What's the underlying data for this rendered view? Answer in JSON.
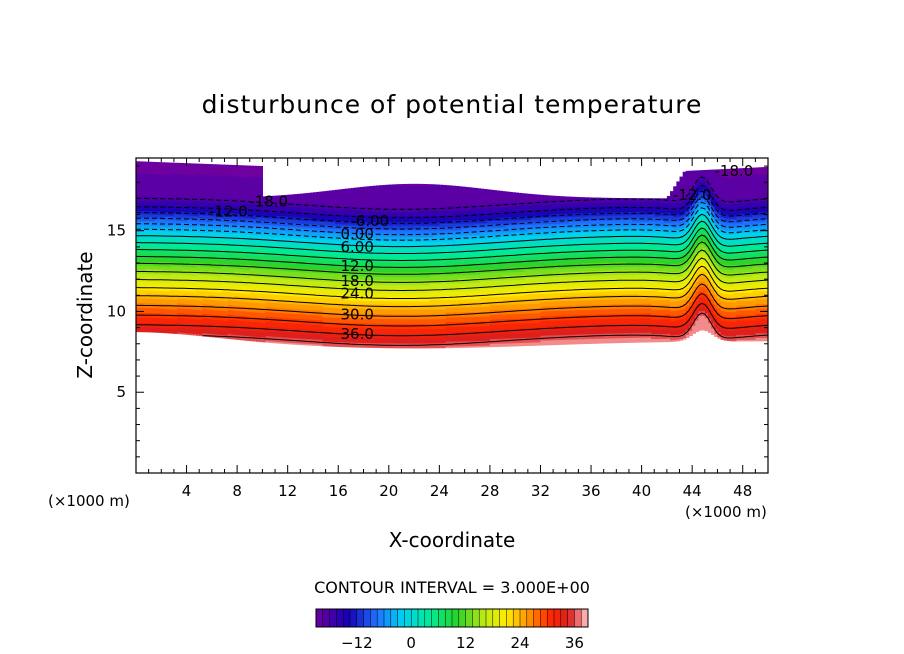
{
  "chart_data": {
    "type": "contour",
    "title": "disturbunce of potential temperature",
    "xlabel": "X-coordinate",
    "ylabel": "Z-coordinate",
    "x_unit_left": "(×1000 m)",
    "x_unit_right": "(×1000 m)",
    "xlim": [
      0,
      50
    ],
    "ylim": [
      0,
      19.5
    ],
    "x_ticks": [
      4,
      8,
      12,
      16,
      20,
      24,
      28,
      32,
      36,
      40,
      44,
      48
    ],
    "y_ticks": [
      5,
      10,
      15
    ],
    "contour_interval_text": "CONTOUR INTERVAL = 3.000E+00",
    "contour_interval": 3,
    "colorbar": {
      "min": -21,
      "max": 39,
      "tick_values": [
        -12,
        0,
        12,
        24,
        36
      ],
      "tick_labels": [
        "−12",
        "0",
        "12",
        "24",
        "36"
      ]
    },
    "contour_labels": [
      {
        "text": "36.0",
        "x": 17.5,
        "z": 8.6
      },
      {
        "text": "30.0",
        "x": 17.5,
        "z": 9.8
      },
      {
        "text": "24.0",
        "x": 17.5,
        "z": 11.1
      },
      {
        "text": "18.0",
        "x": 17.5,
        "z": 11.9
      },
      {
        "text": "12.0",
        "x": 17.5,
        "z": 12.8
      },
      {
        "text": "6.00",
        "x": 17.5,
        "z": 14.0
      },
      {
        "text": "0.00",
        "x": 17.5,
        "z": 14.8
      },
      {
        "text": "-6.00",
        "x": 18.5,
        "z": 15.6
      },
      {
        "text": "-12.0",
        "x": 7.3,
        "z": 16.2
      },
      {
        "text": "-18.0",
        "x": 10.5,
        "z": 16.8
      },
      {
        "text": "-12.0",
        "x": 44.0,
        "z": 17.2
      },
      {
        "text": "-18.0",
        "x": 47.3,
        "z": 18.7
      }
    ]
  }
}
